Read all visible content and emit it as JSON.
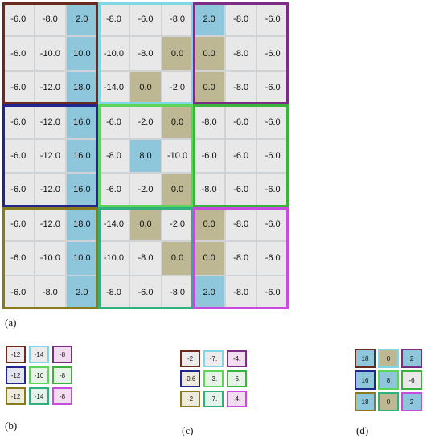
{
  "panel_a": {
    "label": "(a)",
    "rows": [
      [
        "-6.0",
        "-8.0",
        "2.0",
        "-8.0",
        "-6.0",
        "-8.0",
        "2.0",
        "-8.0",
        "-6.0"
      ],
      [
        "-6.0",
        "-10.0",
        "10.0",
        "-10.0",
        "-8.0",
        "0.0",
        "0.0",
        "-8.0",
        "-6.0"
      ],
      [
        "-6.0",
        "-12.0",
        "18.0",
        "-14.0",
        "0.0",
        "-2.0",
        "0.0",
        "-8.0",
        "-6.0"
      ],
      [
        "-6.0",
        "-12.0",
        "16.0",
        "-6.0",
        "-2.0",
        "0.0",
        "-8.0",
        "-6.0",
        "-6.0"
      ],
      [
        "-6.0",
        "-12.0",
        "16.0",
        "-8.0",
        "8.0",
        "-10.0",
        "-6.0",
        "-6.0",
        "-6.0"
      ],
      [
        "-6.0",
        "-12.0",
        "16.0",
        "-6.0",
        "-2.0",
        "0.0",
        "-8.0",
        "-6.0",
        "-6.0"
      ],
      [
        "-6.0",
        "-12.0",
        "18.0",
        "-14.0",
        "0.0",
        "-2.0",
        "0.0",
        "-8.0",
        "-6.0"
      ],
      [
        "-6.0",
        "-10.0",
        "10.0",
        "-10.0",
        "-8.0",
        "0.0",
        "0.0",
        "-8.0",
        "-6.0"
      ],
      [
        "-6.0",
        "-8.0",
        "2.0",
        "-8.0",
        "-6.0",
        "-8.0",
        "2.0",
        "-8.0",
        "-6.0"
      ]
    ],
    "fills": [
      [
        "g",
        "g",
        "b",
        "g",
        "g",
        "g",
        "b",
        "g",
        "g"
      ],
      [
        "g",
        "g",
        "b",
        "g",
        "g",
        "o",
        "o",
        "g",
        "g"
      ],
      [
        "g",
        "g",
        "b",
        "g",
        "o",
        "g",
        "o",
        "g",
        "g"
      ],
      [
        "g",
        "g",
        "b",
        "g",
        "g",
        "o",
        "g",
        "g",
        "g"
      ],
      [
        "g",
        "g",
        "b",
        "g",
        "b",
        "g",
        "g",
        "g",
        "g"
      ],
      [
        "g",
        "g",
        "b",
        "g",
        "g",
        "o",
        "g",
        "g",
        "g"
      ],
      [
        "g",
        "g",
        "b",
        "g",
        "o",
        "g",
        "o",
        "g",
        "g"
      ],
      [
        "g",
        "g",
        "b",
        "g",
        "g",
        "o",
        "o",
        "g",
        "g"
      ],
      [
        "g",
        "g",
        "b",
        "g",
        "g",
        "g",
        "b",
        "g",
        "g"
      ]
    ],
    "block_colors": [
      [
        "#6b2a1e",
        "#7fd6e4",
        "#7b2c83"
      ],
      [
        "#22268c",
        "#5bd65b",
        "#3bb23b"
      ],
      [
        "#8a7a1e",
        "#2fb07c",
        "#c94adf"
      ]
    ]
  },
  "panel_b": {
    "label": "(b)",
    "rows": [
      [
        "-12",
        "-14",
        "-8"
      ],
      [
        "-12",
        "-10",
        "-8"
      ],
      [
        "-12",
        "-14",
        "-8"
      ]
    ],
    "border_colors": [
      [
        "#6b2a1e",
        "#7fd6e4",
        "#7b2c83"
      ],
      [
        "#22268c",
        "#5bd65b",
        "#3bb23b"
      ],
      [
        "#8a7a1e",
        "#2fb07c",
        "#c94adf"
      ]
    ],
    "fill_colors": [
      [
        "#ececec",
        "#ececec",
        "#f2dcef"
      ],
      [
        "#e2e4f0",
        "#e6f3e6",
        "#e6f3e6"
      ],
      [
        "#eeeadc",
        "#e4f2ec",
        "#f2dcef"
      ]
    ]
  },
  "panel_c": {
    "label": "(c)",
    "rows": [
      [
        "-2",
        "-7.",
        "-4."
      ],
      [
        "-0.6",
        "-3.",
        "-6."
      ],
      [
        "-2",
        "-7.",
        "-4."
      ]
    ],
    "border_colors": [
      [
        "#6b2a1e",
        "#7fd6e4",
        "#7b2c83"
      ],
      [
        "#22268c",
        "#5bd65b",
        "#3bb23b"
      ],
      [
        "#8a7a1e",
        "#2fb07c",
        "#c94adf"
      ]
    ],
    "fill_colors": [
      [
        "#ececec",
        "#ececec",
        "#f2dcef"
      ],
      [
        "#eeeadc",
        "#e6f3e6",
        "#e6f3e6"
      ],
      [
        "#eeeadc",
        "#e4f2ec",
        "#f2dcef"
      ]
    ]
  },
  "panel_d": {
    "label": "(d)",
    "rows": [
      [
        "18",
        "0",
        "2"
      ],
      [
        "16",
        "8",
        "-6"
      ],
      [
        "18",
        "0",
        "2"
      ]
    ],
    "border_colors": [
      [
        "#6b2a1e",
        "#7fd6e4",
        "#7b2c83"
      ],
      [
        "#22268c",
        "#5bd65b",
        "#3bb23b"
      ],
      [
        "#8a7a1e",
        "#2fb07c",
        "#c94adf"
      ]
    ],
    "fill_colors": [
      [
        "#8ec6dc",
        "#bdb893",
        "#8ec6dc"
      ],
      [
        "#8ec6dc",
        "#8ec6dc",
        "#e8e8e8"
      ],
      [
        "#8ec6dc",
        "#bdb893",
        "#8ec6dc"
      ]
    ]
  }
}
